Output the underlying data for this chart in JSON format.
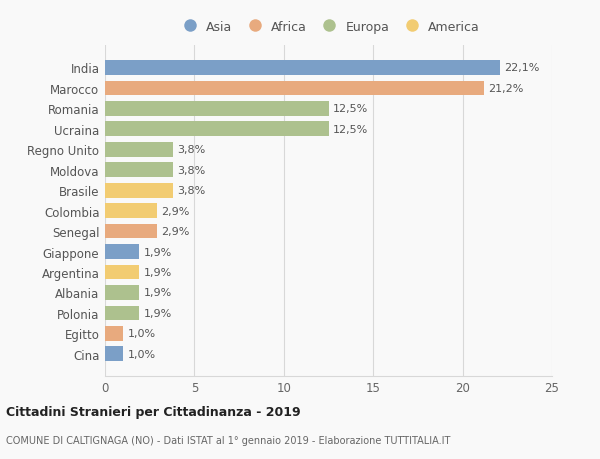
{
  "countries": [
    "India",
    "Marocco",
    "Romania",
    "Ucraina",
    "Regno Unito",
    "Moldova",
    "Brasile",
    "Colombia",
    "Senegal",
    "Giappone",
    "Argentina",
    "Albania",
    "Polonia",
    "Egitto",
    "Cina"
  ],
  "values": [
    22.1,
    21.2,
    12.5,
    12.5,
    3.8,
    3.8,
    3.8,
    2.9,
    2.9,
    1.9,
    1.9,
    1.9,
    1.9,
    1.0,
    1.0
  ],
  "labels": [
    "22,1%",
    "21,2%",
    "12,5%",
    "12,5%",
    "3,8%",
    "3,8%",
    "3,8%",
    "2,9%",
    "2,9%",
    "1,9%",
    "1,9%",
    "1,9%",
    "1,9%",
    "1,0%",
    "1,0%"
  ],
  "continents": [
    "Asia",
    "Africa",
    "Europa",
    "Europa",
    "Europa",
    "Europa",
    "America",
    "America",
    "Africa",
    "Asia",
    "America",
    "Europa",
    "Europa",
    "Africa",
    "Asia"
  ],
  "colors": {
    "Asia": "#7b9fc7",
    "Africa": "#e8aa7e",
    "Europa": "#adc18e",
    "America": "#f2cc72"
  },
  "xlim": [
    0,
    25
  ],
  "xticks": [
    0,
    5,
    10,
    15,
    20,
    25
  ],
  "title": "Cittadini Stranieri per Cittadinanza - 2019",
  "subtitle": "COMUNE DI CALTIGNAGA (NO) - Dati ISTAT al 1° gennaio 2019 - Elaborazione TUTTITALIA.IT",
  "background_color": "#f9f9f9",
  "grid_color": "#d8d8d8",
  "bar_height": 0.72,
  "legend_order": [
    "Asia",
    "Africa",
    "Europa",
    "America"
  ]
}
